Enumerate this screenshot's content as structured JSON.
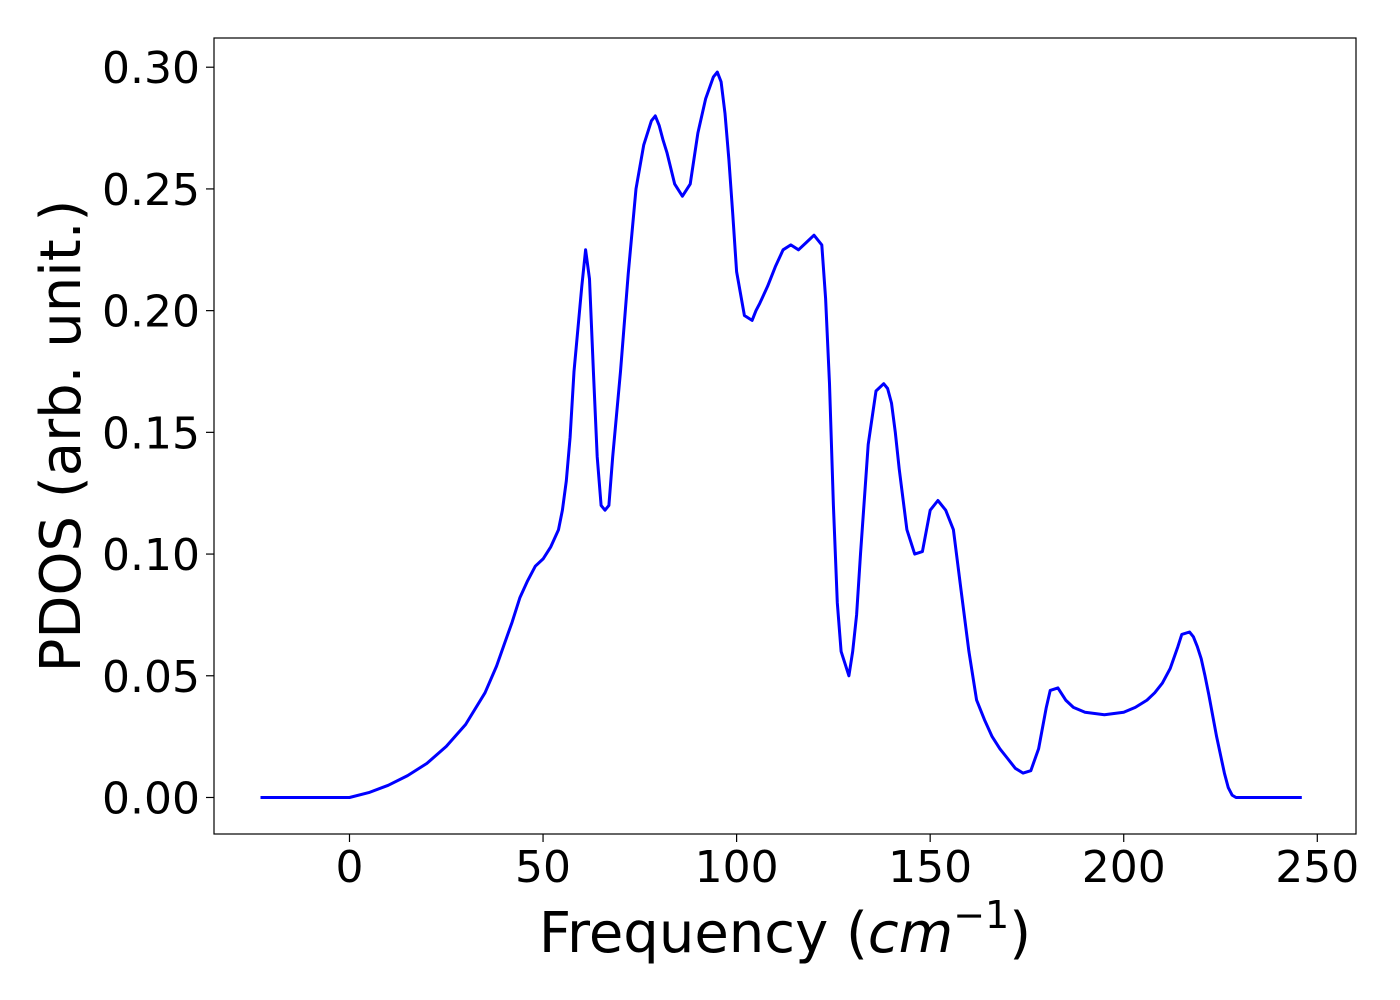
{
  "chart_data": {
    "type": "line",
    "title": "",
    "xlabel": {
      "text": "Frequency (",
      "math_base": "cm",
      "math_sup": "−1",
      "close": ")"
    },
    "ylabel": "PDOS (arb. unit.)",
    "xlim": [
      -35,
      260
    ],
    "ylim": [
      -0.015,
      0.312
    ],
    "xticks": [
      0,
      50,
      100,
      150,
      200,
      250
    ],
    "xtick_labels": [
      "0",
      "50",
      "100",
      "150",
      "200",
      "250"
    ],
    "yticks": [
      0.0,
      0.05,
      0.1,
      0.15,
      0.2,
      0.25,
      0.3
    ],
    "ytick_labels": [
      "0.00",
      "0.05",
      "0.10",
      "0.15",
      "0.20",
      "0.25",
      "0.30"
    ],
    "grid": false,
    "line_color": "#0000ff",
    "series": [
      {
        "x": [
          -23,
          -10,
          0,
          5,
          10,
          15,
          20,
          25,
          30,
          35,
          38,
          40,
          42,
          44,
          46,
          48,
          50,
          52,
          54,
          55,
          56,
          57,
          58,
          60,
          61,
          62,
          63,
          64,
          65,
          66,
          67,
          68,
          70,
          72,
          74,
          76,
          78,
          79,
          80,
          81,
          82,
          84,
          86,
          88,
          90,
          92,
          94,
          95,
          96,
          97,
          98,
          99,
          100,
          102,
          104,
          105,
          106,
          108,
          110,
          112,
          114,
          116,
          118,
          120,
          122,
          123,
          124,
          125,
          126,
          127,
          128,
          129,
          130,
          131,
          132,
          134,
          136,
          138,
          139,
          140,
          141,
          142,
          144,
          146,
          148,
          150,
          152,
          154,
          156,
          158,
          160,
          162,
          164,
          166,
          168,
          170,
          172,
          174,
          176,
          178,
          180,
          181,
          183,
          185,
          187,
          190,
          195,
          200,
          203,
          206,
          208,
          210,
          212,
          214,
          215,
          217,
          218,
          219,
          220,
          221,
          222,
          224,
          226,
          227,
          228,
          229,
          230,
          232,
          235,
          240,
          246
        ],
        "y": [
          0.0,
          0.0,
          0.0,
          0.002,
          0.005,
          0.009,
          0.014,
          0.021,
          0.03,
          0.043,
          0.054,
          0.063,
          0.072,
          0.082,
          0.089,
          0.095,
          0.098,
          0.103,
          0.11,
          0.118,
          0.13,
          0.148,
          0.175,
          0.21,
          0.225,
          0.213,
          0.175,
          0.14,
          0.12,
          0.118,
          0.12,
          0.14,
          0.175,
          0.215,
          0.25,
          0.268,
          0.278,
          0.28,
          0.276,
          0.27,
          0.265,
          0.252,
          0.247,
          0.252,
          0.273,
          0.287,
          0.296,
          0.298,
          0.294,
          0.281,
          0.262,
          0.24,
          0.216,
          0.198,
          0.196,
          0.2,
          0.203,
          0.21,
          0.218,
          0.225,
          0.227,
          0.225,
          0.228,
          0.231,
          0.227,
          0.205,
          0.17,
          0.12,
          0.08,
          0.06,
          0.055,
          0.05,
          0.06,
          0.075,
          0.1,
          0.145,
          0.167,
          0.17,
          0.168,
          0.162,
          0.15,
          0.135,
          0.11,
          0.1,
          0.101,
          0.118,
          0.122,
          0.118,
          0.11,
          0.085,
          0.06,
          0.04,
          0.032,
          0.025,
          0.02,
          0.016,
          0.012,
          0.01,
          0.011,
          0.02,
          0.037,
          0.044,
          0.045,
          0.04,
          0.037,
          0.035,
          0.034,
          0.035,
          0.037,
          0.04,
          0.043,
          0.047,
          0.053,
          0.062,
          0.067,
          0.068,
          0.066,
          0.062,
          0.057,
          0.05,
          0.042,
          0.025,
          0.01,
          0.004,
          0.001,
          0.0,
          0.0,
          0.0,
          0.0,
          0.0,
          0.0
        ]
      }
    ]
  }
}
